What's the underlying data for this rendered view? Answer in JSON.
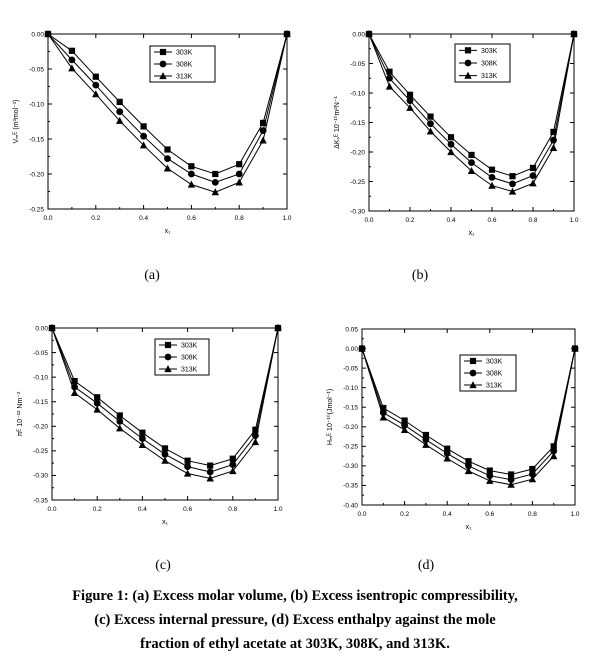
{
  "caption": {
    "line1": "Figure 1: (a) Excess molar volume, (b) Excess isentropic compressibility,",
    "line2": "(c) Excess internal pressure, (d) Excess enthalpy against the mole",
    "line3": "fraction of ethyl acetate at 303K, 308K, and 313K."
  },
  "colors": {
    "axis": "#000000",
    "series": "#000000",
    "background": "#ffffff"
  },
  "chart_data": [
    {
      "panel_label": "(a)",
      "type": "line",
      "xlabel": "x₁",
      "ylabel": "Vₘᴱ (m³mol⁻¹)",
      "xlim": [
        0.0,
        1.0
      ],
      "ylim": [
        -0.25,
        0.0
      ],
      "xticks": [
        0.0,
        0.2,
        0.4,
        0.6,
        0.8,
        1.0
      ],
      "xtick_labels": [
        "0.0",
        "0.2",
        "0.4",
        "0.6",
        "0.8",
        "1.0"
      ],
      "yticks": [
        0.0,
        -0.05,
        -0.1,
        -0.15,
        -0.2,
        -0.25
      ],
      "ytick_labels": [
        "0.00",
        "-0.05",
        "-0.10",
        "-0.15",
        "-0.20",
        "-0.25"
      ],
      "legend_position": "top-right",
      "x": [
        0.0,
        0.1,
        0.2,
        0.3,
        0.4,
        0.5,
        0.6,
        0.7,
        0.8,
        0.9,
        1.0
      ],
      "series": [
        {
          "name": "303K",
          "marker": "square",
          "values": [
            0.0,
            -0.024,
            -0.061,
            -0.097,
            -0.132,
            -0.165,
            -0.189,
            -0.2,
            -0.186,
            -0.127,
            0.0
          ]
        },
        {
          "name": "308K",
          "marker": "circle",
          "values": [
            0.0,
            -0.037,
            -0.073,
            -0.111,
            -0.146,
            -0.178,
            -0.2,
            -0.212,
            -0.2,
            -0.138,
            0.0
          ]
        },
        {
          "name": "313K",
          "marker": "triangle",
          "values": [
            0.0,
            -0.049,
            -0.086,
            -0.124,
            -0.159,
            -0.192,
            -0.215,
            -0.226,
            -0.212,
            -0.152,
            0.0
          ]
        }
      ]
    },
    {
      "panel_label": "(b)",
      "type": "line",
      "xlabel": "x₁",
      "ylabel": "ΔKₛᴱ 10⁻¹⁰m²N⁻¹",
      "xlim": [
        0.0,
        1.0
      ],
      "ylim": [
        -0.3,
        0.0
      ],
      "xticks": [
        0.0,
        0.2,
        0.4,
        0.6,
        0.8,
        1.0
      ],
      "xtick_labels": [
        "0.0",
        "0.2",
        "0.4",
        "0.6",
        "0.8",
        "1.0"
      ],
      "yticks": [
        0.0,
        -0.05,
        -0.1,
        -0.15,
        -0.2,
        -0.25,
        -0.3
      ],
      "ytick_labels": [
        "0.00",
        "-0.05",
        "-0.10",
        "-0.15",
        "-0.20",
        "-0.25",
        "-0.30"
      ],
      "legend_position": "top-right",
      "x": [
        0.0,
        0.1,
        0.2,
        0.3,
        0.4,
        0.5,
        0.6,
        0.7,
        0.8,
        0.9,
        1.0
      ],
      "series": [
        {
          "name": "303K",
          "marker": "square",
          "values": [
            0.0,
            -0.064,
            -0.103,
            -0.14,
            -0.175,
            -0.205,
            -0.23,
            -0.241,
            -0.227,
            -0.166,
            0.0
          ]
        },
        {
          "name": "308K",
          "marker": "circle",
          "values": [
            0.0,
            -0.075,
            -0.113,
            -0.152,
            -0.187,
            -0.218,
            -0.243,
            -0.254,
            -0.24,
            -0.18,
            0.0
          ]
        },
        {
          "name": "313K",
          "marker": "triangle",
          "values": [
            0.0,
            -0.089,
            -0.125,
            -0.165,
            -0.2,
            -0.232,
            -0.257,
            -0.267,
            -0.253,
            -0.193,
            0.0
          ]
        }
      ]
    },
    {
      "panel_label": "(c)",
      "type": "line",
      "xlabel": "x₁",
      "ylabel": "πᴱ 10⁻¹² Nm⁻²",
      "xlim": [
        0.0,
        1.0
      ],
      "ylim": [
        -0.35,
        0.0
      ],
      "xticks": [
        0.0,
        0.2,
        0.4,
        0.6,
        0.8,
        1.0
      ],
      "xtick_labels": [
        "0.0",
        "0.2",
        "0.4",
        "0.6",
        "0.8",
        "1.0"
      ],
      "yticks": [
        0.0,
        -0.05,
        -0.1,
        -0.15,
        -0.2,
        -0.25,
        -0.3,
        -0.35
      ],
      "ytick_labels": [
        "0.00",
        "-0.05",
        "-0.10",
        "-0.15",
        "-0.20",
        "-0.25",
        "-0.30",
        "-0.35"
      ],
      "legend_position": "top-right",
      "x": [
        0.0,
        0.1,
        0.2,
        0.3,
        0.4,
        0.5,
        0.6,
        0.7,
        0.8,
        0.9,
        1.0
      ],
      "series": [
        {
          "name": "303K",
          "marker": "square",
          "values": [
            0.0,
            -0.108,
            -0.141,
            -0.178,
            -0.213,
            -0.245,
            -0.27,
            -0.28,
            -0.266,
            -0.207,
            0.0
          ]
        },
        {
          "name": "308K",
          "marker": "circle",
          "values": [
            0.0,
            -0.12,
            -0.153,
            -0.19,
            -0.225,
            -0.257,
            -0.282,
            -0.293,
            -0.278,
            -0.219,
            0.0
          ]
        },
        {
          "name": "313K",
          "marker": "triangle",
          "values": [
            0.0,
            -0.132,
            -0.166,
            -0.204,
            -0.238,
            -0.27,
            -0.296,
            -0.306,
            -0.291,
            -0.232,
            0.0
          ]
        }
      ]
    },
    {
      "panel_label": "(d)",
      "type": "line",
      "xlabel": "x₁",
      "ylabel": "Hₘᴱ 10⁻¹⁰(Jmol⁻¹)",
      "xlim": [
        0.0,
        1.0
      ],
      "ylim": [
        -0.4,
        0.05
      ],
      "xticks": [
        0.0,
        0.2,
        0.4,
        0.6,
        0.8,
        1.0
      ],
      "xtick_labels": [
        "0.0",
        "0.2",
        "0.4",
        "0.6",
        "0.8",
        "1.0"
      ],
      "yticks": [
        0.05,
        0.0,
        -0.05,
        -0.1,
        -0.15,
        -0.2,
        -0.25,
        -0.3,
        -0.35,
        -0.4
      ],
      "ytick_labels": [
        "0.05",
        "0.00",
        "-0.05",
        "-0.10",
        "-0.15",
        "-0.20",
        "-0.25",
        "-0.30",
        "-0.35",
        "-0.40"
      ],
      "legend_position": "top-right",
      "x": [
        0.0,
        0.1,
        0.2,
        0.3,
        0.4,
        0.5,
        0.6,
        0.7,
        0.8,
        0.9,
        1.0
      ],
      "series": [
        {
          "name": "303K",
          "marker": "square",
          "values": [
            0.0,
            -0.152,
            -0.184,
            -0.221,
            -0.256,
            -0.288,
            -0.312,
            -0.322,
            -0.308,
            -0.25,
            0.0
          ]
        },
        {
          "name": "308K",
          "marker": "circle",
          "values": [
            0.0,
            -0.164,
            -0.196,
            -0.233,
            -0.268,
            -0.3,
            -0.325,
            -0.335,
            -0.321,
            -0.262,
            0.0
          ]
        },
        {
          "name": "313K",
          "marker": "triangle",
          "values": [
            0.0,
            -0.176,
            -0.208,
            -0.246,
            -0.281,
            -0.313,
            -0.338,
            -0.348,
            -0.334,
            -0.275,
            0.0
          ]
        }
      ]
    }
  ]
}
